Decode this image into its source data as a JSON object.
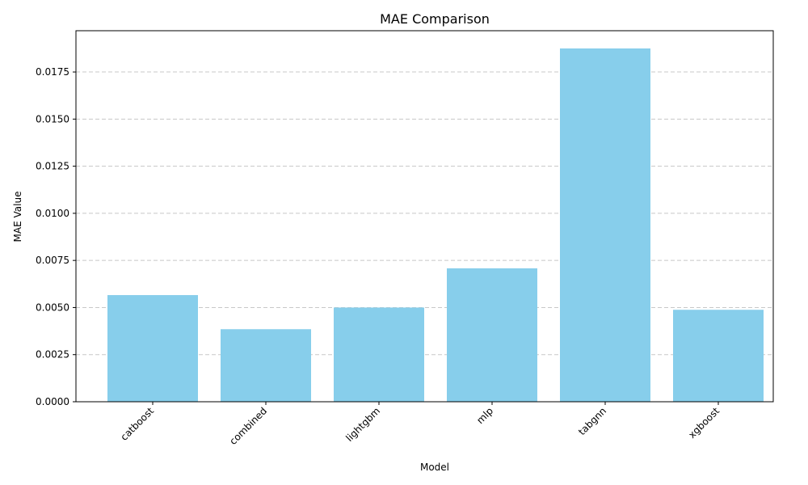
{
  "chart_data": {
    "type": "bar",
    "title": "MAE Comparison",
    "xlabel": "Model",
    "ylabel": "MAE Value",
    "categories": [
      "catboost",
      "combined",
      "lightgbm",
      "mlp",
      "tabgnn",
      "xgboost"
    ],
    "values": [
      0.00566,
      0.00385,
      0.005,
      0.00708,
      0.01875,
      0.00488
    ],
    "ylim": [
      0,
      0.01969
    ],
    "yticks": [
      "0.0000",
      "0.0025",
      "0.0050",
      "0.0075",
      "0.0100",
      "0.0125",
      "0.0150",
      "0.0175"
    ],
    "bar_color": "#87ceeb",
    "grid": "y-dashed",
    "legend": "none"
  }
}
